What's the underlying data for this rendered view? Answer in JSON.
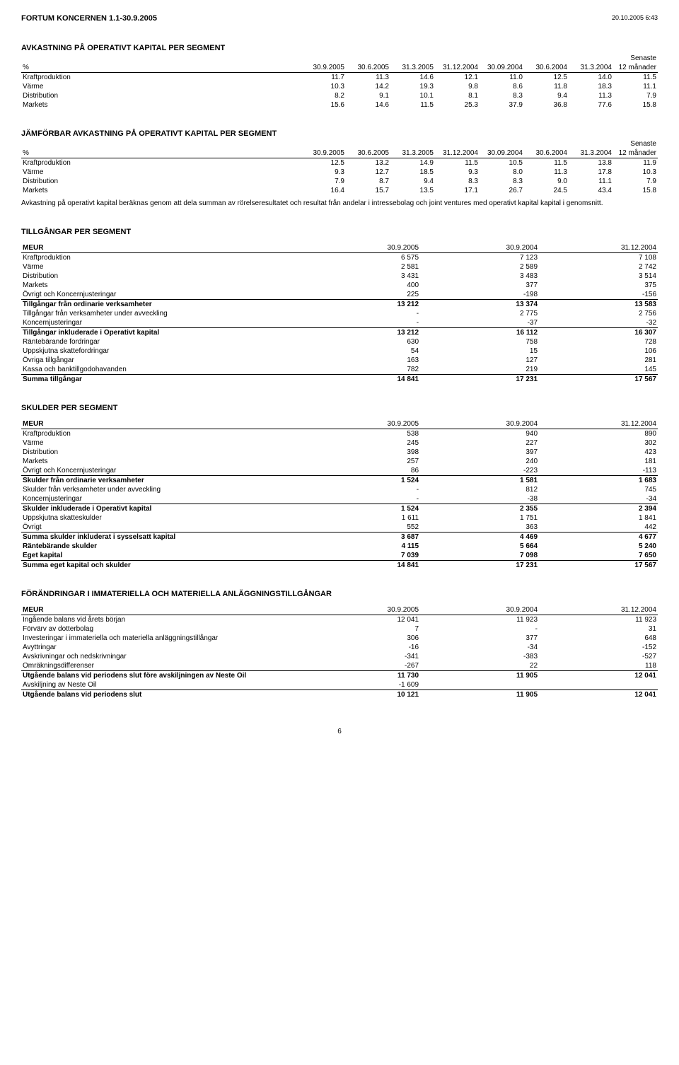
{
  "header": {
    "title": "FORTUM KONCERNEN 1.1-30.9.2005",
    "datetime": "20.10.2005 6:43"
  },
  "t1": {
    "title": "AVKASTNING PÅ OPERATIVT KAPITAL PER SEGMENT",
    "unit": "%",
    "senaste": "Senaste",
    "cols": [
      "30.9.2005",
      "30.6.2005",
      "31.3.2005",
      "31.12.2004",
      "30.09.2004",
      "30.6.2004",
      "31.3.2004",
      "12 månader"
    ],
    "rows": [
      {
        "label": "Kraftproduktion",
        "v": [
          "11.7",
          "11.3",
          "14.6",
          "12.1",
          "11.0",
          "12.5",
          "14.0",
          "11.5"
        ]
      },
      {
        "label": "Värme",
        "v": [
          "10.3",
          "14.2",
          "19.3",
          "9.8",
          "8.6",
          "11.8",
          "18.3",
          "11.1"
        ]
      },
      {
        "label": "Distribution",
        "v": [
          "8.2",
          "9.1",
          "10.1",
          "8.1",
          "8.3",
          "9.4",
          "11.3",
          "7.9"
        ]
      },
      {
        "label": "Markets",
        "v": [
          "15.6",
          "14.6",
          "11.5",
          "25.3",
          "37.9",
          "36.8",
          "77.6",
          "15.8"
        ]
      }
    ]
  },
  "t2": {
    "title": "JÄMFÖRBAR AVKASTNING PÅ OPERATIVT KAPITAL PER SEGMENT",
    "unit": "%",
    "senaste": "Senaste",
    "cols": [
      "30.9.2005",
      "30.6.2005",
      "31.3.2005",
      "31.12.2004",
      "30.09.2004",
      "30.6.2004",
      "31.3.2004",
      "12 månader"
    ],
    "rows": [
      {
        "label": "Kraftproduktion",
        "v": [
          "12.5",
          "13.2",
          "14.9",
          "11.5",
          "10.5",
          "11.5",
          "13.8",
          "11.9"
        ]
      },
      {
        "label": "Värme",
        "v": [
          "9.3",
          "12.7",
          "18.5",
          "9.3",
          "8.0",
          "11.3",
          "17.8",
          "10.3"
        ]
      },
      {
        "label": "Distribution",
        "v": [
          "7.9",
          "8.7",
          "9.4",
          "8.3",
          "8.3",
          "9.0",
          "11.1",
          "7.9"
        ]
      },
      {
        "label": "Markets",
        "v": [
          "16.4",
          "15.7",
          "13.5",
          "17.1",
          "26.7",
          "24.5",
          "43.4",
          "15.8"
        ]
      }
    ],
    "note": "Avkastning på operativt kapital beräknas genom att dela summan av rörelseresultatet och resultat från andelar i intressebolag och joint ventures med operativt kapital kapital i genomsnitt."
  },
  "t3": {
    "title": "TILLGÅNGAR PER SEGMENT",
    "unit": "MEUR",
    "cols": [
      "30.9.2005",
      "30.9.2004",
      "31.12.2004"
    ],
    "rows": [
      {
        "label": "Kraftproduktion",
        "v": [
          "6 575",
          "7 123",
          "7 108"
        ]
      },
      {
        "label": "Värme",
        "v": [
          "2 581",
          "2 589",
          "2 742"
        ]
      },
      {
        "label": "Distribution",
        "v": [
          "3 431",
          "3 483",
          "3 514"
        ]
      },
      {
        "label": "Markets",
        "v": [
          "400",
          "377",
          "375"
        ]
      },
      {
        "label": "Övrigt och Koncernjusteringar",
        "v": [
          "225",
          "-198",
          "-156"
        ]
      },
      {
        "label": "Tillgångar från ordinarie verksamheter",
        "v": [
          "13 212",
          "13 374",
          "13 583"
        ],
        "bold": true,
        "top": true
      },
      {
        "label": "Tillgångar från verksamheter under avveckling",
        "v": [
          "-",
          "2 775",
          "2 756"
        ]
      },
      {
        "label": "Koncernjusteringar",
        "v": [
          "-",
          "-37",
          "-32"
        ]
      },
      {
        "label": "Tillgångar inkluderade i Operativt kapital",
        "v": [
          "13 212",
          "16 112",
          "16 307"
        ],
        "bold": true,
        "top": true
      },
      {
        "label": "Räntebärande fordringar",
        "v": [
          "630",
          "758",
          "728"
        ]
      },
      {
        "label": "Uppskjutna skattefordringar",
        "v": [
          "54",
          "15",
          "106"
        ]
      },
      {
        "label": "Övriga tillgångar",
        "v": [
          "163",
          "127",
          "281"
        ]
      },
      {
        "label": "Kassa och banktillgodohavanden",
        "v": [
          "782",
          "219",
          "145"
        ]
      },
      {
        "label": "Summa tillgångar",
        "v": [
          "14 841",
          "17 231",
          "17 567"
        ],
        "bold": true,
        "top": true
      }
    ]
  },
  "t4": {
    "title": "SKULDER PER SEGMENT",
    "unit": "MEUR",
    "cols": [
      "30.9.2005",
      "30.9.2004",
      "31.12.2004"
    ],
    "rows": [
      {
        "label": "Kraftproduktion",
        "v": [
          "538",
          "940",
          "890"
        ]
      },
      {
        "label": "Värme",
        "v": [
          "245",
          "227",
          "302"
        ]
      },
      {
        "label": "Distribution",
        "v": [
          "398",
          "397",
          "423"
        ]
      },
      {
        "label": "Markets",
        "v": [
          "257",
          "240",
          "181"
        ]
      },
      {
        "label": "Övrigt och Koncernjusteringar",
        "v": [
          "86",
          "-223",
          "-113"
        ]
      },
      {
        "label": "Skulder från ordinarie verksamheter",
        "v": [
          "1 524",
          "1 581",
          "1 683"
        ],
        "bold": true,
        "top": true
      },
      {
        "label": "Skulder från verksamheter under avveckling",
        "v": [
          "-",
          "812",
          "745"
        ]
      },
      {
        "label": "Koncernjusteringar",
        "v": [
          "-",
          "-38",
          "-34"
        ]
      },
      {
        "label": "Skulder inkluderade i Operativt kapital",
        "v": [
          "1 524",
          "2 355",
          "2 394"
        ],
        "bold": true,
        "top": true
      },
      {
        "label": "Uppskjutna skatteskulder",
        "v": [
          "1 611",
          "1 751",
          "1 841"
        ]
      },
      {
        "label": "Övrigt",
        "v": [
          "552",
          "363",
          "442"
        ]
      },
      {
        "label": "Summa skulder inkluderat i sysselsatt kapital",
        "v": [
          "3 687",
          "4 469",
          "4 677"
        ],
        "bold": true,
        "top": true
      },
      {
        "label": "Räntebärande skulder",
        "v": [
          "4 115",
          "5 664",
          "5 240"
        ],
        "bold": true
      },
      {
        "label": "Eget kapital",
        "v": [
          "7 039",
          "7 098",
          "7 650"
        ],
        "bold": true
      },
      {
        "label": "Summa eget kapital och skulder",
        "v": [
          "14 841",
          "17 231",
          "17 567"
        ],
        "bold": true,
        "top": true
      }
    ]
  },
  "t5": {
    "title": "FÖRÄNDRINGAR I IMMATERIELLA OCH MATERIELLA ANLÄGGNINGSTILLGÅNGAR",
    "unit": "MEUR",
    "cols": [
      "30.9.2005",
      "30.9.2004",
      "31.12.2004"
    ],
    "rows": [
      {
        "label": "Ingående balans vid årets början",
        "v": [
          "12 041",
          "11 923",
          "11 923"
        ]
      },
      {
        "label": "Förvärv av dotterbolag",
        "v": [
          "7",
          "-",
          "31"
        ]
      },
      {
        "label": "Investeringar i immateriella och materiella anläggningstillångar",
        "v": [
          "306",
          "377",
          "648"
        ]
      },
      {
        "label": "Avyttringar",
        "v": [
          "-16",
          "-34",
          "-152"
        ]
      },
      {
        "label": "Avskrivningar och nedskrivningar",
        "v": [
          "-341",
          "-383",
          "-527"
        ]
      },
      {
        "label": "Omräkningsdifferenser",
        "v": [
          "-267",
          "22",
          "118"
        ]
      },
      {
        "label": "Utgående balans vid periodens slut före avskiljningen av Neste Oil",
        "v": [
          "11 730",
          "11 905",
          "12 041"
        ],
        "bold": true,
        "top": true
      },
      {
        "label": "Avskiljning av Neste Oil",
        "v": [
          "-1 609",
          "",
          ""
        ]
      },
      {
        "label": "Utgående balans vid periodens slut",
        "v": [
          "10 121",
          "11 905",
          "12 041"
        ],
        "bold": true,
        "top": true
      }
    ]
  },
  "pagenum": "6"
}
